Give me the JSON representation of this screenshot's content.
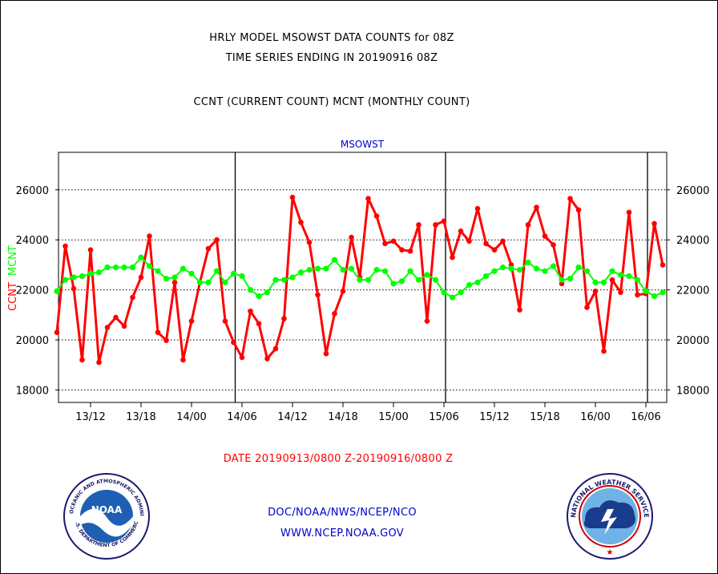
{
  "titles": {
    "line1": "HRLY MODEL MSOWST DATA COUNTS for 08Z",
    "line2": "TIME SERIES ENDING IN 20190916 08Z",
    "line3": "CCNT (CURRENT COUNT) MCNT (MONTHLY COUNT)"
  },
  "footer": {
    "date_range": "DATE 20190913/0800 Z-20190916/0800 Z",
    "org": "DOC/NOAA/NWS/NCEP/NCO",
    "url": "WWW.NCEP.NOAA.GOV"
  },
  "logos": {
    "noaa_text": "NOAA",
    "noaa_ring_top": "NATIONAL OCEANIC AND ATMOSPHERIC ADMINISTRATION",
    "noaa_ring_bottom": "U.S. DEPARTMENT OF COMMERCE",
    "nws_ring": "NATIONAL WEATHER SERVICE"
  },
  "colors": {
    "ccnt": "#ff0000",
    "mcnt": "#00ff00",
    "title": "#000000",
    "panel_label": "#0000cc",
    "footer_date": "#ff0000",
    "footer_org": "#0000cc"
  },
  "chart_data": {
    "type": "line",
    "panel_label": "MSOWST",
    "ylabel_ccnt": "CCNT",
    "ylabel_mcnt": "MCNT",
    "ylim": [
      17500,
      27500
    ],
    "yticks": [
      18000,
      20000,
      22000,
      24000,
      26000
    ],
    "ytick_labels": [
      "18000",
      "20000",
      "22000",
      "24000",
      "26000"
    ],
    "x": [
      "13/08",
      "13/09",
      "13/10",
      "13/11",
      "13/12",
      "13/13",
      "13/14",
      "13/15",
      "13/16",
      "13/17",
      "13/18",
      "13/19",
      "13/20",
      "13/21",
      "13/22",
      "13/23",
      "14/00",
      "14/01",
      "14/02",
      "14/03",
      "14/04",
      "14/05",
      "14/06",
      "14/07",
      "14/08",
      "14/09",
      "14/10",
      "14/11",
      "14/12",
      "14/13",
      "14/14",
      "14/15",
      "14/16",
      "14/17",
      "14/18",
      "14/19",
      "14/20",
      "14/21",
      "14/22",
      "14/23",
      "15/00",
      "15/01",
      "15/02",
      "15/03",
      "15/04",
      "15/05",
      "15/06",
      "15/07",
      "15/08",
      "15/09",
      "15/10",
      "15/11",
      "15/12",
      "15/13",
      "15/14",
      "15/15",
      "15/16",
      "15/17",
      "15/18",
      "15/19",
      "15/20",
      "15/21",
      "15/22",
      "15/23",
      "16/00",
      "16/01",
      "16/02",
      "16/03",
      "16/04",
      "16/05",
      "16/06",
      "16/07",
      "16/08"
    ],
    "xtick_labels": [
      {
        "x": "13/12",
        "label": "13/12"
      },
      {
        "x": "13/18",
        "label": "13/18"
      },
      {
        "x": "14/00",
        "label": "14/00"
      },
      {
        "x": "14/06",
        "label": "14/06"
      },
      {
        "x": "14/12",
        "label": "14/12"
      },
      {
        "x": "14/18",
        "label": "14/18"
      },
      {
        "x": "15/00",
        "label": "15/00"
      },
      {
        "x": "15/06",
        "label": "15/06"
      },
      {
        "x": "15/12",
        "label": "15/12"
      },
      {
        "x": "15/18",
        "label": "15/18"
      },
      {
        "x": "16/00",
        "label": "16/00"
      },
      {
        "x": "16/06",
        "label": "16/06"
      }
    ],
    "day_boundaries": [
      "14/05",
      "15/06",
      "16/06"
    ],
    "grid": "horizontal dotted",
    "series": [
      {
        "name": "CCNT",
        "values": [
          20300,
          23750,
          22050,
          19200,
          23600,
          19100,
          20500,
          20900,
          20550,
          21700,
          22500,
          24150,
          20300,
          19980,
          22300,
          19200,
          20750,
          22300,
          23650,
          24000,
          20750,
          19900,
          19300,
          21150,
          20650,
          19250,
          19650,
          20850,
          25700,
          24700,
          23900,
          21800,
          19450,
          21050,
          21950,
          24100,
          22500,
          25650,
          24950,
          23850,
          23950,
          23600,
          23550,
          24600,
          20750,
          24600,
          24750,
          23300,
          24350,
          23950,
          25250,
          23850,
          23600,
          23950,
          23000,
          21200,
          24600,
          25300,
          24150,
          23800,
          22250,
          25650,
          25200,
          21300,
          21950,
          19550,
          22400,
          21900,
          25100,
          21800,
          21850,
          24650,
          23000
        ]
      },
      {
        "name": "MCNT",
        "values": [
          21950,
          22400,
          22500,
          22550,
          22650,
          22700,
          22900,
          22900,
          22900,
          22900,
          23300,
          22950,
          22750,
          22450,
          22500,
          22850,
          22650,
          22300,
          22300,
          22750,
          22300,
          22650,
          22550,
          22000,
          21750,
          21900,
          22400,
          22400,
          22500,
          22700,
          22800,
          22850,
          22850,
          23200,
          22800,
          22850,
          22400,
          22400,
          22800,
          22750,
          22250,
          22350,
          22750,
          22400,
          22600,
          22400,
          21900,
          21700,
          21900,
          22200,
          22300,
          22550,
          22750,
          22900,
          22850,
          22800,
          23100,
          22850,
          22750,
          22950,
          22400,
          22450,
          22900,
          22750,
          22300,
          22300,
          22750,
          22600,
          22550,
          22400,
          21950,
          21750,
          21900
        ]
      }
    ]
  }
}
